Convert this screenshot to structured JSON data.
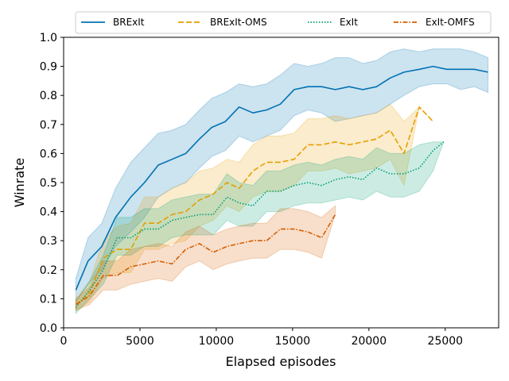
{
  "chart_data": {
    "type": "line",
    "title": "",
    "xlabel": "Elapsed episodes",
    "ylabel": "Winrate",
    "xlim": [
      0,
      28500
    ],
    "ylim": [
      0.0,
      1.0
    ],
    "xticks": [
      0,
      5000,
      10000,
      15000,
      20000,
      25000
    ],
    "xtick_labels": [
      "0",
      "5000",
      "10000",
      "15000",
      "20000",
      "25000"
    ],
    "yticks": [
      0.0,
      0.1,
      0.2,
      0.3,
      0.4,
      0.5,
      0.6,
      0.7,
      0.8,
      0.9,
      1.0
    ],
    "ytick_labels": [
      "0.0",
      "0.1",
      "0.2",
      "0.3",
      "0.4",
      "0.5",
      "0.6",
      "0.7",
      "0.8",
      "0.9",
      "1.0"
    ],
    "grid": false,
    "legend_position": "top",
    "series": [
      {
        "name": "BRExIt",
        "color": "#0072B2",
        "dash": "solid",
        "x": [
          800,
          1600,
          2500,
          3400,
          4400,
          5300,
          6200,
          7100,
          8000,
          8900,
          9700,
          10600,
          11500,
          12400,
          13300,
          14200,
          15100,
          16000,
          16900,
          17800,
          18700,
          19600,
          20500,
          21400,
          22300,
          23300,
          24200,
          25100,
          26000,
          26900,
          27800
        ],
        "y": [
          0.13,
          0.23,
          0.28,
          0.38,
          0.45,
          0.5,
          0.56,
          0.58,
          0.6,
          0.65,
          0.69,
          0.71,
          0.76,
          0.74,
          0.75,
          0.77,
          0.82,
          0.83,
          0.83,
          0.82,
          0.83,
          0.82,
          0.83,
          0.86,
          0.88,
          0.89,
          0.9,
          0.89,
          0.89,
          0.89,
          0.88
        ],
        "lower": [
          0.09,
          0.15,
          0.2,
          0.28,
          0.33,
          0.38,
          0.45,
          0.48,
          0.5,
          0.55,
          0.59,
          0.61,
          0.66,
          0.64,
          0.66,
          0.68,
          0.73,
          0.75,
          0.74,
          0.71,
          0.72,
          0.73,
          0.74,
          0.77,
          0.8,
          0.83,
          0.84,
          0.84,
          0.82,
          0.83,
          0.81
        ],
        "upper": [
          0.17,
          0.31,
          0.36,
          0.48,
          0.57,
          0.62,
          0.67,
          0.68,
          0.7,
          0.75,
          0.79,
          0.81,
          0.84,
          0.83,
          0.84,
          0.87,
          0.91,
          0.9,
          0.91,
          0.93,
          0.93,
          0.91,
          0.92,
          0.95,
          0.96,
          0.95,
          0.96,
          0.96,
          0.96,
          0.95,
          0.93
        ]
      },
      {
        "name": "BRExIt-OMS",
        "color": "#E69F00",
        "dash": "dashed",
        "x": [
          800,
          1700,
          2600,
          3500,
          4400,
          5300,
          6200,
          7100,
          8000,
          8900,
          9800,
          10700,
          11500,
          12400,
          13300,
          14200,
          15100,
          16000,
          16900,
          17800,
          18700,
          19600,
          20500,
          21400,
          22300,
          23300,
          24200
        ],
        "y": [
          0.08,
          0.12,
          0.24,
          0.27,
          0.27,
          0.36,
          0.36,
          0.39,
          0.4,
          0.44,
          0.46,
          0.5,
          0.48,
          0.54,
          0.57,
          0.57,
          0.58,
          0.63,
          0.63,
          0.64,
          0.63,
          0.64,
          0.65,
          0.68,
          0.6,
          0.76,
          0.71
        ],
        "lower": [
          0.06,
          0.09,
          0.17,
          0.19,
          0.19,
          0.27,
          0.27,
          0.29,
          0.3,
          0.35,
          0.37,
          0.42,
          0.4,
          0.45,
          0.47,
          0.47,
          0.49,
          0.54,
          0.54,
          0.55,
          0.53,
          0.54,
          0.55,
          0.58,
          0.49,
          0.76,
          0.71
        ],
        "upper": [
          0.1,
          0.16,
          0.3,
          0.35,
          0.36,
          0.45,
          0.45,
          0.48,
          0.5,
          0.54,
          0.55,
          0.58,
          0.57,
          0.63,
          0.66,
          0.66,
          0.67,
          0.72,
          0.72,
          0.73,
          0.72,
          0.73,
          0.74,
          0.77,
          0.71,
          0.76,
          0.71
        ]
      },
      {
        "name": "ExIt",
        "color": "#009E73",
        "dash": "dotted",
        "x": [
          800,
          1700,
          2600,
          3500,
          4400,
          5300,
          6200,
          7100,
          8000,
          8900,
          9800,
          10700,
          11500,
          12400,
          13300,
          14200,
          15100,
          16000,
          16900,
          17800,
          18700,
          19600,
          20500,
          21400,
          22300,
          23300,
          24200,
          24900
        ],
        "y": [
          0.07,
          0.13,
          0.2,
          0.31,
          0.31,
          0.34,
          0.34,
          0.37,
          0.38,
          0.39,
          0.39,
          0.45,
          0.43,
          0.42,
          0.47,
          0.47,
          0.49,
          0.5,
          0.49,
          0.51,
          0.52,
          0.51,
          0.55,
          0.53,
          0.53,
          0.55,
          0.61,
          0.64
        ],
        "lower": [
          0.05,
          0.1,
          0.15,
          0.25,
          0.25,
          0.28,
          0.28,
          0.31,
          0.32,
          0.32,
          0.32,
          0.37,
          0.35,
          0.35,
          0.4,
          0.4,
          0.42,
          0.43,
          0.43,
          0.44,
          0.45,
          0.44,
          0.47,
          0.45,
          0.45,
          0.47,
          0.54,
          0.64
        ],
        "upper": [
          0.09,
          0.16,
          0.25,
          0.38,
          0.38,
          0.41,
          0.41,
          0.44,
          0.45,
          0.46,
          0.46,
          0.53,
          0.5,
          0.49,
          0.54,
          0.54,
          0.56,
          0.57,
          0.56,
          0.58,
          0.59,
          0.58,
          0.62,
          0.6,
          0.6,
          0.63,
          0.64,
          0.64
        ]
      },
      {
        "name": "ExIt-OMFS",
        "color": "#D55E00",
        "dash": "dashdot",
        "x": [
          800,
          1700,
          2600,
          3500,
          4400,
          5300,
          6200,
          7100,
          8000,
          8900,
          9800,
          10700,
          11500,
          12400,
          13300,
          14200,
          15100,
          16000,
          16900,
          17800
        ],
        "y": [
          0.08,
          0.11,
          0.18,
          0.18,
          0.21,
          0.22,
          0.23,
          0.22,
          0.27,
          0.29,
          0.26,
          0.28,
          0.29,
          0.3,
          0.3,
          0.34,
          0.34,
          0.33,
          0.31,
          0.39
        ],
        "lower": [
          0.06,
          0.08,
          0.13,
          0.13,
          0.15,
          0.16,
          0.17,
          0.16,
          0.21,
          0.23,
          0.2,
          0.22,
          0.23,
          0.24,
          0.24,
          0.27,
          0.27,
          0.26,
          0.24,
          0.39
        ],
        "upper": [
          0.1,
          0.14,
          0.23,
          0.23,
          0.27,
          0.28,
          0.29,
          0.28,
          0.33,
          0.35,
          0.32,
          0.34,
          0.35,
          0.36,
          0.36,
          0.41,
          0.41,
          0.4,
          0.38,
          0.42
        ]
      }
    ]
  }
}
